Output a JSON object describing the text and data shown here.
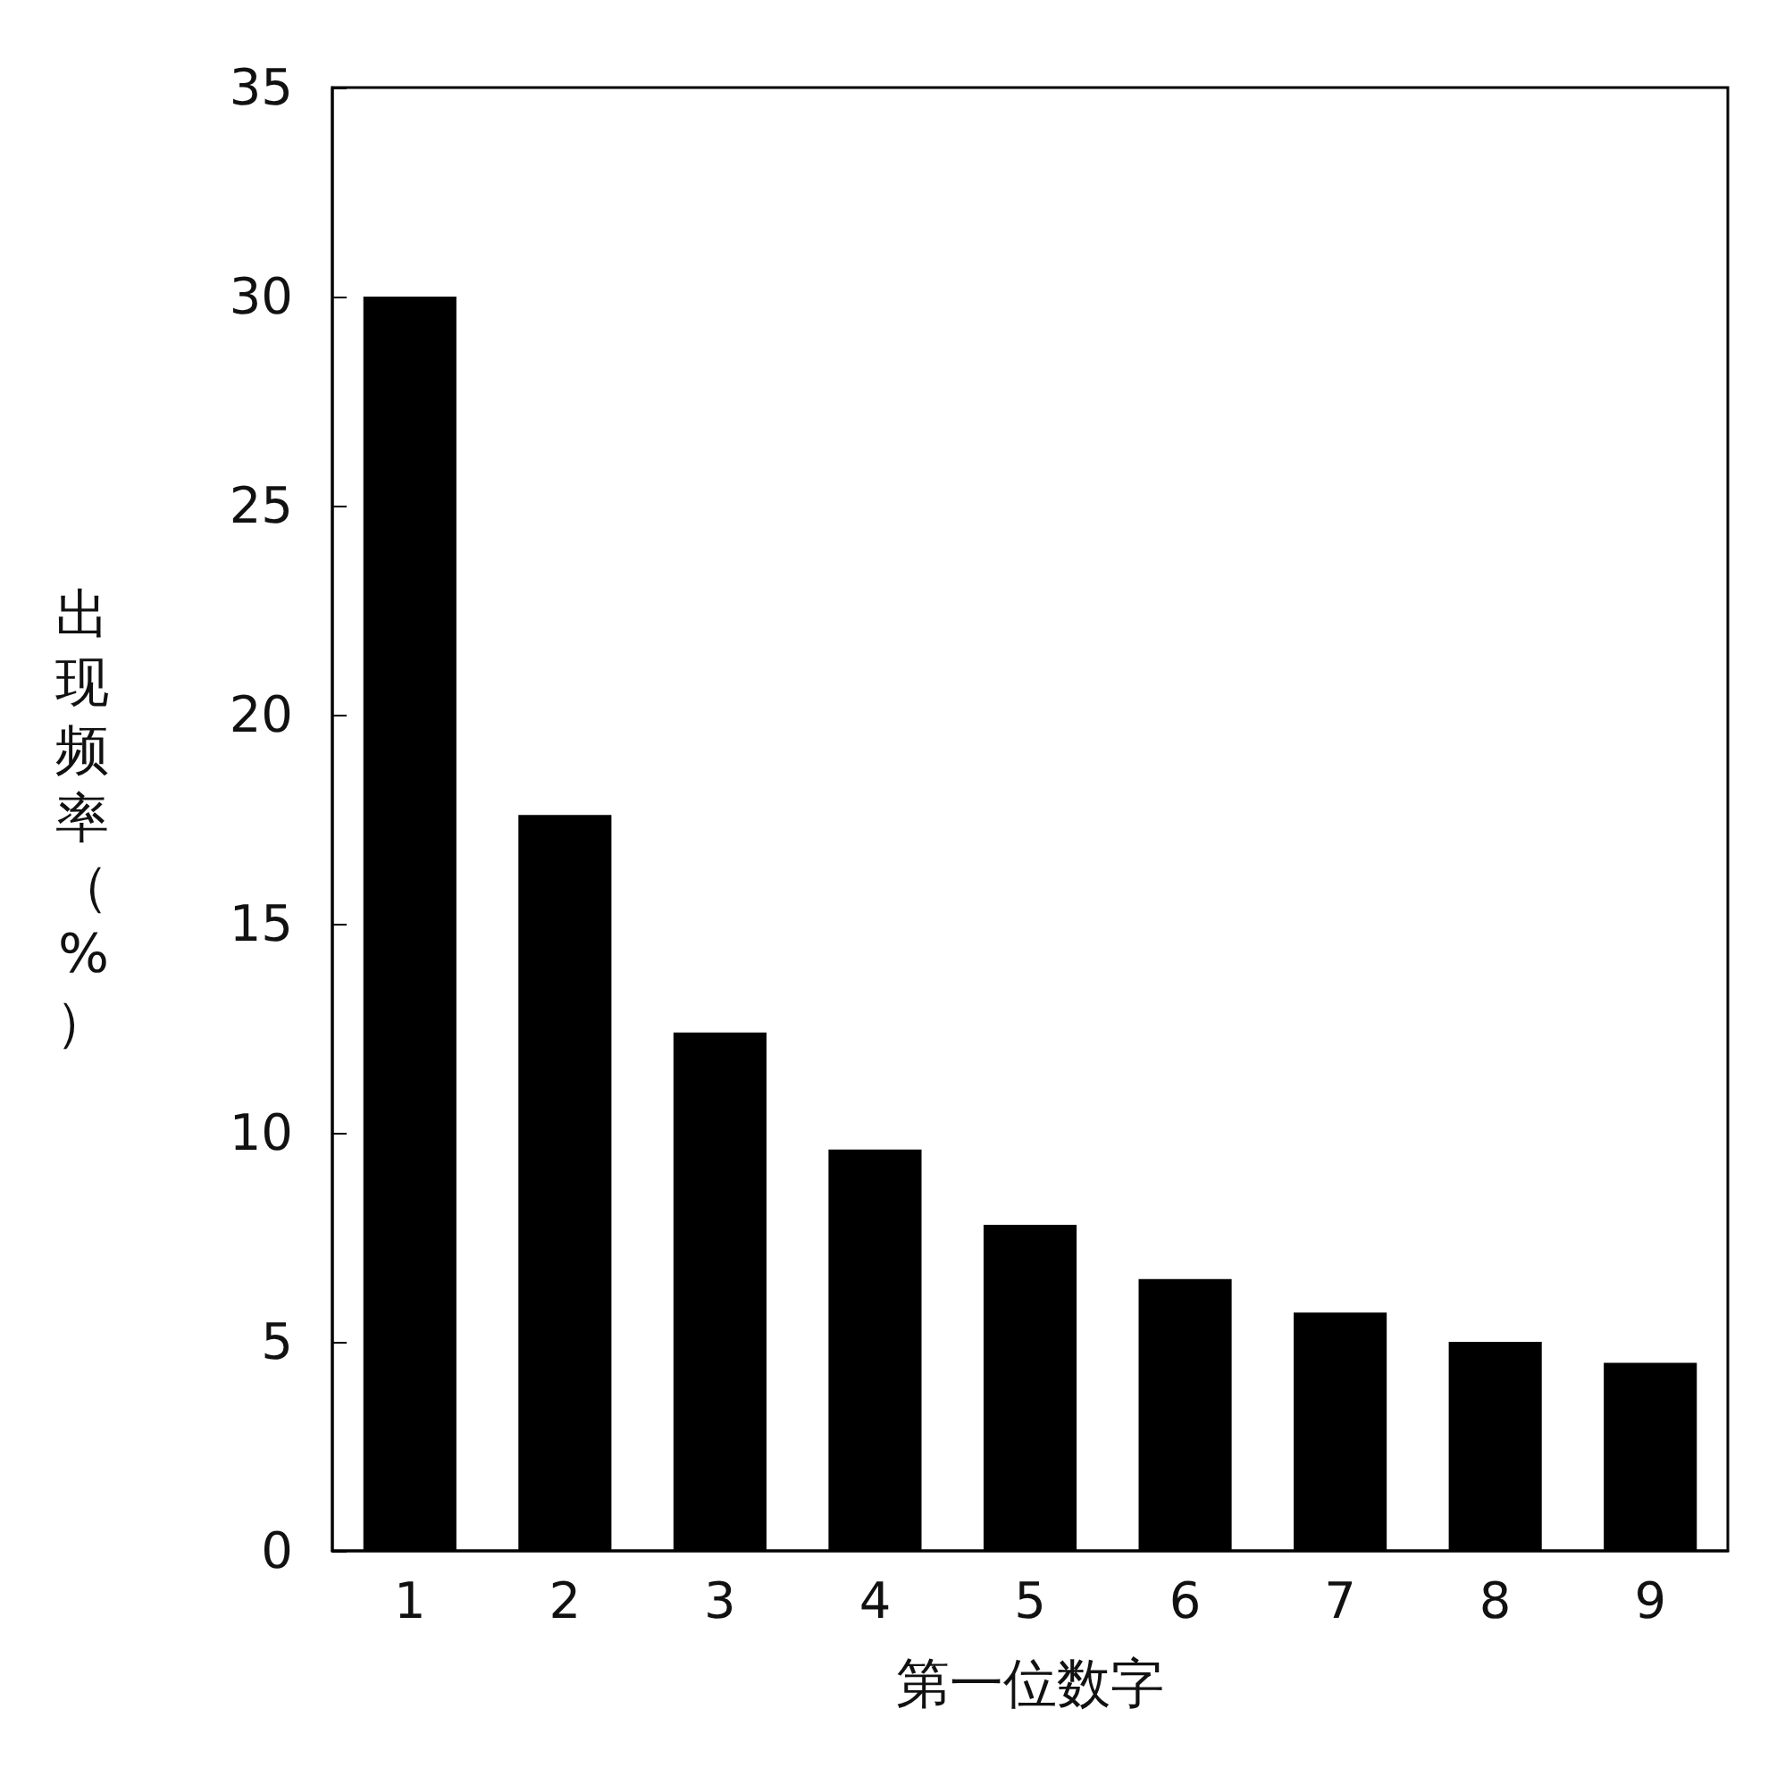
{
  "chart_data": {
    "type": "bar",
    "xlabel": "第一位数字",
    "ylabel": "出现频率（%）",
    "categories": [
      "1",
      "2",
      "3",
      "4",
      "5",
      "6",
      "7",
      "8",
      "9"
    ],
    "values": [
      30.0,
      17.6,
      12.4,
      9.6,
      7.8,
      6.5,
      5.7,
      5.0,
      4.5
    ],
    "color": "#000000",
    "ylim": [
      0,
      35
    ],
    "yticks": [
      0,
      5,
      10,
      15,
      20,
      25,
      30,
      35
    ],
    "grid": false
  }
}
